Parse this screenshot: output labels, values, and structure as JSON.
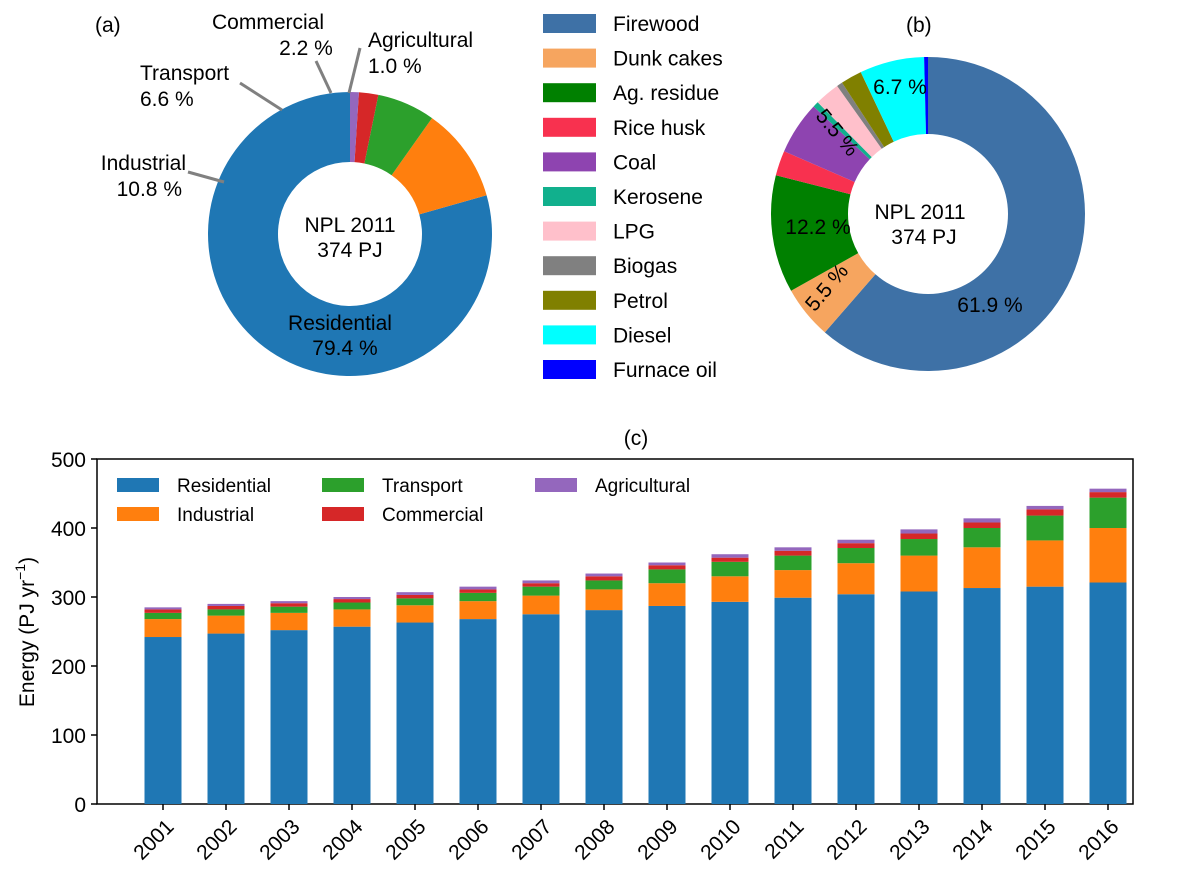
{
  "chart_data": [
    {
      "type": "pie",
      "panel_label": "(a)",
      "center_label": [
        "NPL 2011",
        "374 PJ"
      ],
      "slices": [
        {
          "name": "Residential",
          "value": 79.4,
          "label": "79.4 %",
          "color": "#1f77b4"
        },
        {
          "name": "Industrial",
          "value": 10.8,
          "label": "10.8 %",
          "color": "#ff7f0e"
        },
        {
          "name": "Transport",
          "value": 6.6,
          "label": "6.6 %",
          "color": "#2ca02c"
        },
        {
          "name": "Commercial",
          "value": 2.2,
          "label": "2.2 %",
          "color": "#d62728"
        },
        {
          "name": "Agricultural",
          "value": 1.0,
          "label": "1.0 %",
          "color": "#9467bd"
        }
      ]
    },
    {
      "type": "pie",
      "panel_label": "(b)",
      "center_label": [
        "NPL 2011",
        "374 PJ"
      ],
      "legend": [
        "Firewood",
        "Dunk cakes",
        "Ag. residue",
        "Rice husk",
        "Coal",
        "Kerosene",
        "LPG",
        "Biogas",
        "Petrol",
        "Diesel",
        "Furnace oil"
      ],
      "slices": [
        {
          "name": "Firewood",
          "value": 61.9,
          "label": "61.9 %",
          "color": "#3e71a6"
        },
        {
          "name": "Dunk cakes",
          "value": 5.5,
          "label": "5.5 %",
          "color": "#f6a55f"
        },
        {
          "name": "Ag. residue",
          "value": 12.2,
          "label": "12.2 %",
          "color": "#008000"
        },
        {
          "name": "Rice husk",
          "value": 2.6,
          "label": "",
          "color": "#f8314f"
        },
        {
          "name": "Coal",
          "value": 5.5,
          "label": "5.5 %",
          "color": "#8e44b0"
        },
        {
          "name": "Kerosene",
          "value": 0.6,
          "label": "",
          "color": "#11b08d"
        },
        {
          "name": "LPG",
          "value": 2.6,
          "label": "",
          "color": "#ffc0cb"
        },
        {
          "name": "Biogas",
          "value": 0.6,
          "label": "",
          "color": "#808080"
        },
        {
          "name": "Petrol",
          "value": 2.2,
          "label": "",
          "color": "#808000"
        },
        {
          "name": "Diesel",
          "value": 6.7,
          "label": "6.7 %",
          "color": "#00ffff"
        },
        {
          "name": "Furnace oil",
          "value": 0.4,
          "label": "",
          "color": "#0000ff"
        }
      ]
    },
    {
      "type": "bar",
      "stacked": true,
      "panel_label": "(c)",
      "ylabel": "Energy (PJ yr",
      "ylabel_sup": "−1",
      "ylabel_end": ")",
      "ylim": [
        0,
        500
      ],
      "yticks": [
        0,
        100,
        200,
        300,
        400,
        500
      ],
      "legend_placement": "top-left",
      "categories": [
        "2001",
        "2002",
        "2003",
        "2004",
        "2005",
        "2006",
        "2007",
        "2008",
        "2009",
        "2010",
        "2011",
        "2012",
        "2013",
        "2014",
        "2015",
        "2016"
      ],
      "series": [
        {
          "name": "Residential",
          "color": "#1f77b4",
          "values": [
            242,
            247,
            252,
            257,
            263,
            268,
            275,
            281,
            287,
            293,
            299,
            304,
            308,
            313,
            315,
            321
          ]
        },
        {
          "name": "Industrial",
          "color": "#ff7f0e",
          "values": [
            26,
            26,
            25,
            25,
            25,
            26,
            27,
            30,
            33,
            37,
            40,
            45,
            52,
            59,
            67,
            79
          ]
        },
        {
          "name": "Transport",
          "color": "#2ca02c",
          "values": [
            9,
            9,
            9,
            10,
            10,
            12,
            13,
            13,
            20,
            21,
            21,
            22,
            24,
            28,
            36,
            44
          ]
        },
        {
          "name": "Commercial",
          "color": "#d62728",
          "values": [
            5,
            5,
            5,
            5,
            5,
            5,
            5,
            6,
            6,
            6,
            7,
            7,
            8,
            8,
            9,
            8
          ]
        },
        {
          "name": "Agricultural",
          "color": "#9467bd",
          "values": [
            3,
            3,
            3,
            3,
            4,
            4,
            4,
            4,
            4,
            5,
            5,
            5,
            6,
            6,
            5,
            5
          ]
        }
      ]
    }
  ]
}
